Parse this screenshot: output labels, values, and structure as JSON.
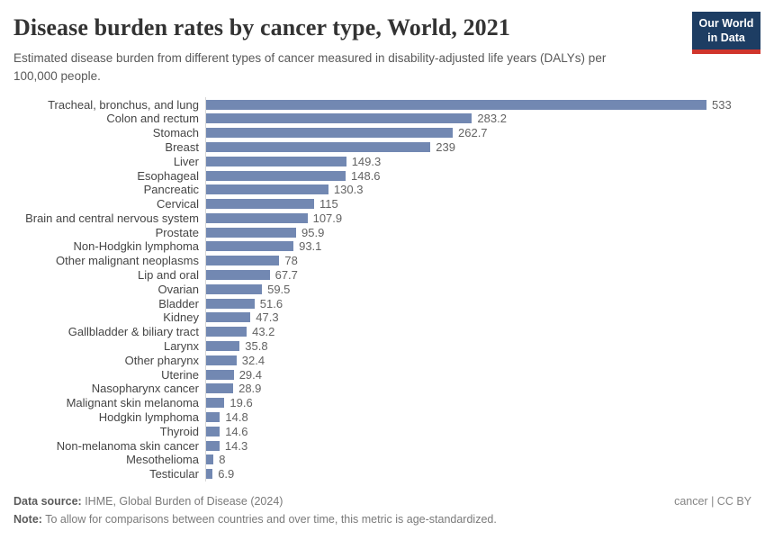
{
  "header": {
    "title": "Disease burden rates by cancer type, World, 2021",
    "subtitle": "Estimated disease burden from different types of cancer measured in disability-adjusted life years (DALYs) per 100,000 people.",
    "logo": {
      "line1": "Our World",
      "line2": "in Data"
    }
  },
  "chart_data": {
    "type": "bar",
    "orientation": "horizontal",
    "title": "Disease burden rates by cancer type, World, 2021",
    "xlabel": "",
    "ylabel": "",
    "xlim": [
      0,
      533
    ],
    "grid": false,
    "legend": false,
    "bar_color": "#7288b2",
    "categories": [
      "Tracheal, bronchus, and lung",
      "Colon and rectum",
      "Stomach",
      "Breast",
      "Liver",
      "Esophageal",
      "Pancreatic",
      "Cervical",
      "Brain and central nervous system",
      "Prostate",
      "Non-Hodgkin lymphoma",
      "Other malignant neoplasms",
      "Lip and oral",
      "Ovarian",
      "Bladder",
      "Kidney",
      "Gallbladder & biliary tract",
      "Larynx",
      "Other pharynx",
      "Uterine",
      "Nasopharynx cancer",
      "Malignant skin melanoma",
      "Hodgkin lymphoma",
      "Thyroid",
      "Non-melanoma skin cancer",
      "Mesothelioma",
      "Testicular"
    ],
    "values": [
      533,
      283.2,
      262.7,
      239,
      149.3,
      148.6,
      130.3,
      115,
      107.9,
      95.9,
      93.1,
      78,
      67.7,
      59.5,
      51.6,
      47.3,
      43.2,
      35.8,
      32.4,
      29.4,
      28.9,
      19.6,
      14.8,
      14.6,
      14.3,
      8,
      6.9
    ]
  },
  "footer": {
    "source_label": "Data source:",
    "source_text": " IHME, Global Burden of Disease (2024)",
    "note_label": "Note:",
    "note_text": " To allow for comparisons between countries and over time, this metric is age-standardized.",
    "license": "cancer | CC BY"
  },
  "colors": {
    "bar": "#7288b2",
    "logo_background": "#1d3d63",
    "logo_accent": "#d0352c",
    "axis_line": "#d8d8d8",
    "title_text": "#333333",
    "subtitle_text": "#595959",
    "label_text": "#454545",
    "value_text": "#636363"
  }
}
